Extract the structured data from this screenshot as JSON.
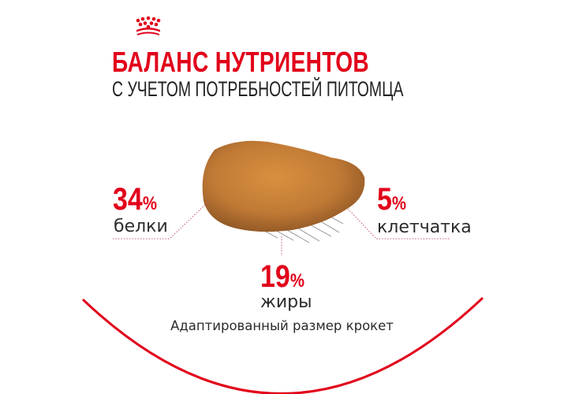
{
  "brand_color": "#e2001a",
  "logo": {
    "icon": "crown-icon"
  },
  "title": "БАЛАНС НУТРИЕНТОВ",
  "subtitle": "С УЧЕТОМ ПОТРЕБНОСТЕЙ ПИТОМЦА",
  "nutrients": [
    {
      "value": "34",
      "unit": "%",
      "label": "белки"
    },
    {
      "value": "5",
      "unit": "%",
      "label": "клетчатка"
    },
    {
      "value": "19",
      "unit": "%",
      "label": "жиры"
    }
  ],
  "footer": "Адаптированный размер крокет"
}
